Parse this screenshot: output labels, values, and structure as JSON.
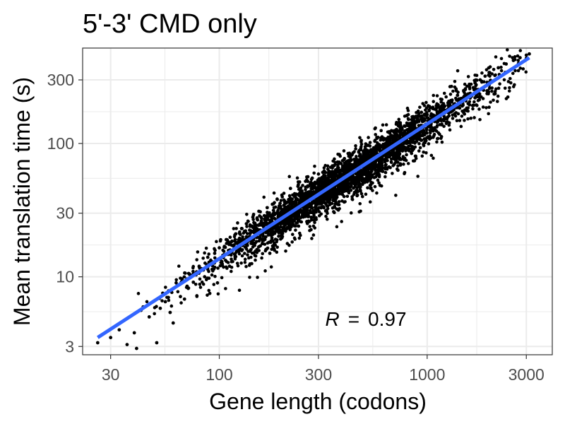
{
  "chart_data": {
    "type": "scatter",
    "title": "5'-3' CMD only",
    "xlabel": "Gene length (codons)",
    "ylabel": "Mean translation time (s)",
    "x_scale": "log10",
    "y_scale": "log10",
    "xlim": [
      22,
      4000
    ],
    "ylim": [
      2.6,
      520
    ],
    "x_ticks": [
      30,
      100,
      300,
      1000,
      3000
    ],
    "x_tick_labels": [
      "30",
      "100",
      "300",
      "1000",
      "3000"
    ],
    "y_ticks": [
      3,
      10,
      30,
      100,
      300
    ],
    "y_tick_labels": [
      "3",
      "10",
      "30",
      "100",
      "300"
    ],
    "grid": true,
    "annotation": {
      "label": "R",
      "eq": "=",
      "value": "0.97"
    },
    "fit_line": {
      "color": "#3366ff",
      "x": [
        26,
        3100
      ],
      "y": [
        3.5,
        440
      ]
    },
    "colors": {
      "points": "#000000",
      "fit": "#3366ff",
      "panel_border": "#333333",
      "grid": "#ebebeb"
    },
    "series": [
      {
        "x": [
          26,
          30,
          33,
          36,
          39,
          40,
          42,
          46,
          50,
          52,
          55,
          58,
          60,
          62,
          65,
          68,
          70,
          72,
          75,
          78,
          80,
          82,
          85,
          88,
          90,
          92,
          95,
          98,
          100,
          104,
          108,
          112,
          115,
          120,
          124,
          128,
          132,
          135,
          140,
          145,
          150,
          155,
          160,
          165,
          170,
          175,
          180,
          185,
          190,
          195,
          200,
          210,
          220,
          230,
          240,
          250,
          260,
          270,
          280,
          290,
          300,
          310,
          320,
          335,
          350,
          360,
          375,
          390,
          400,
          420,
          440,
          460,
          480,
          500,
          520,
          540,
          560,
          580,
          600,
          630,
          660,
          700,
          740,
          780,
          820,
          860,
          900,
          950,
          1000,
          1050,
          1100,
          1150,
          1200,
          1300,
          1400,
          1500,
          1600,
          1700,
          1800,
          1900,
          2000,
          2200,
          2400,
          2600,
          2800,
          3000,
          3100,
          1500,
          1600,
          1700,
          2100
        ],
        "y": [
          3.2,
          3.5,
          4.0,
          3.1,
          3.8,
          2.9,
          5.6,
          5.0,
          3.2,
          5.8,
          6.5,
          5.4,
          4.5,
          9.0,
          7.1,
          6.8,
          8.5,
          10.4,
          9.1,
          7.2,
          12.0,
          11.5,
          10.0,
          14.0,
          7.5,
          13.0,
          15.0,
          9.0,
          16.5,
          14.5,
          19.0,
          12.0,
          18.5,
          21.0,
          15.5,
          23.0,
          19.0,
          25.0,
          20.0,
          28.0,
          22.5,
          31.0,
          25.0,
          27.0,
          33.0,
          15.0,
          35.0,
          30.0,
          38.0,
          29.0,
          41.0,
          36.0,
          46.0,
          40.0,
          49.0,
          44.0,
          52.0,
          48.0,
          55.0,
          42.0,
          59.0,
          53.0,
          62.0,
          58.0,
          68.0,
          61.0,
          72.0,
          64.0,
          77.0,
          70.0,
          85.0,
          75.0,
          90.0,
          82.0,
          97.0,
          88.0,
          104.0,
          96.0,
          110.0,
          100.0,
          120.0,
          112.0,
          132.0,
          124.0,
          141.0,
          135.0,
          152.0,
          146.0,
          165.0,
          160.0,
          180.0,
          172.0,
          195.0,
          210.0,
          230.0,
          250.0,
          265.0,
          285.0,
          300.0,
          320.0,
          340.0,
          370.0,
          395.0,
          420.0,
          440.0,
          460.0,
          470.0,
          170.0,
          195.0,
          220.0,
          235.0
        ]
      }
    ]
  }
}
